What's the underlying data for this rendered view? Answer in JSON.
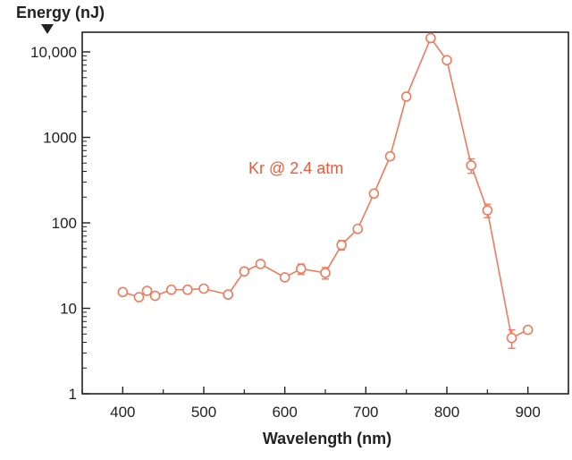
{
  "chart_data": {
    "type": "line",
    "title": "",
    "ylabel": "Energy (nJ)",
    "xlabel": "Wavelength (nm)",
    "yscale": "log",
    "xlim": [
      350,
      950
    ],
    "ylim": [
      1,
      20000
    ],
    "x_ticks": [
      "400",
      "500",
      "600",
      "700",
      "800",
      "900"
    ],
    "y_ticks": [
      "1",
      "10",
      "100",
      "1000",
      "10,000"
    ],
    "annotation": "Kr @ 2.4 atm",
    "color": "#f07a5c",
    "grid": false,
    "series": [
      {
        "points": [
          {
            "x": 400,
            "y": 15.5,
            "err_lo": 14.5,
            "err_hi": 16.5
          },
          {
            "x": 420,
            "y": 13.5,
            "err_lo": 12.5,
            "err_hi": 14.5
          },
          {
            "x": 430,
            "y": 16,
            "err_lo": 15,
            "err_hi": 17
          },
          {
            "x": 440,
            "y": 14,
            "err_lo": 13,
            "err_hi": 15
          },
          {
            "x": 460,
            "y": 16.5,
            "err_lo": 15.5,
            "err_hi": 17.5
          },
          {
            "x": 480,
            "y": 16.5,
            "err_lo": 15.5,
            "err_hi": 17.5
          },
          {
            "x": 500,
            "y": 17,
            "err_lo": 16,
            "err_hi": 18
          },
          {
            "x": 530,
            "y": 14.5,
            "err_lo": 13.5,
            "err_hi": 15.5
          },
          {
            "x": 550,
            "y": 27,
            "err_lo": 25,
            "err_hi": 29
          },
          {
            "x": 570,
            "y": 33,
            "err_lo": 31,
            "err_hi": 35
          },
          {
            "x": 600,
            "y": 23,
            "err_lo": 21.5,
            "err_hi": 24.5
          },
          {
            "x": 620,
            "y": 29,
            "err_lo": 25,
            "err_hi": 33
          },
          {
            "x": 650,
            "y": 26,
            "err_lo": 22,
            "err_hi": 30
          },
          {
            "x": 670,
            "y": 55,
            "err_lo": 48,
            "err_hi": 62
          },
          {
            "x": 690,
            "y": 85,
            "err_lo": 78,
            "err_hi": 92
          },
          {
            "x": 710,
            "y": 220,
            "err_lo": 200,
            "err_hi": 240
          },
          {
            "x": 730,
            "y": 600,
            "err_lo": 550,
            "err_hi": 650
          },
          {
            "x": 750,
            "y": 3000,
            "err_lo": 2850,
            "err_hi": 3150
          },
          {
            "x": 780,
            "y": 14500,
            "err_lo": 13500,
            "err_hi": 15500
          },
          {
            "x": 800,
            "y": 8000,
            "err_lo": 7300,
            "err_hi": 8700
          },
          {
            "x": 830,
            "y": 470,
            "err_lo": 380,
            "err_hi": 560
          },
          {
            "x": 850,
            "y": 140,
            "err_lo": 115,
            "err_hi": 165
          },
          {
            "x": 880,
            "y": 4.5,
            "err_lo": 3.4,
            "err_hi": 5.6
          },
          {
            "x": 900,
            "y": 5.6,
            "err_lo": 5.2,
            "err_hi": 6.0
          }
        ]
      }
    ]
  }
}
